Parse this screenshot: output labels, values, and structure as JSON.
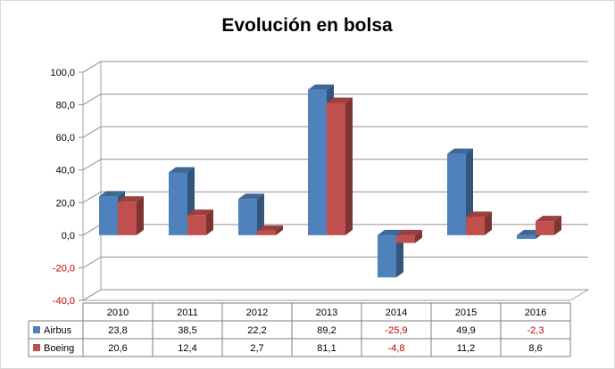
{
  "chart_data": {
    "type": "bar",
    "title": "Evolución en bolsa",
    "categories": [
      "2010",
      "2011",
      "2012",
      "2013",
      "2014",
      "2015",
      "2016"
    ],
    "series": [
      {
        "name": "Airbus",
        "color": "#4f81bd",
        "values": [
          23.8,
          38.5,
          22.2,
          89.2,
          -25.9,
          49.9,
          -2.3
        ],
        "labels": [
          "23,8",
          "38,5",
          "22,2",
          "89,2",
          "-25,9",
          "49,9",
          "-2,3"
        ]
      },
      {
        "name": "Boeing",
        "color": "#c0504d",
        "values": [
          20.6,
          12.4,
          2.7,
          81.1,
          -4.8,
          11.2,
          8.6
        ],
        "labels": [
          "20,6",
          "12,4",
          "2,7",
          "81,1",
          "-4,8",
          "11,2",
          "8,6"
        ]
      }
    ],
    "ylim": [
      -40,
      100
    ],
    "yticks": [
      -40,
      -20,
      0,
      20,
      40,
      60,
      80,
      100
    ],
    "ytick_labels": [
      "-40,0",
      "-20,0",
      "0,0",
      "20,0",
      "40,0",
      "60,0",
      "80,0",
      "100,0"
    ],
    "legend": "data-table-left",
    "grid": true,
    "negative_label_color": "#c00000"
  }
}
